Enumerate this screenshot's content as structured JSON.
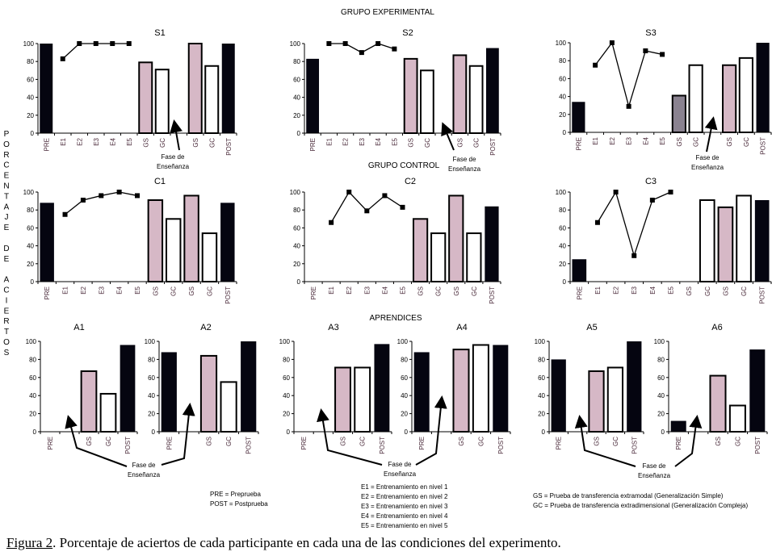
{
  "groups": {
    "experimental": "GRUPO EXPERIMENTAL",
    "control": "GRUPO CONTROL",
    "apprentices": "APRENDICES"
  },
  "y_axis_label": "PORCENTAJE DE ACIERTOS",
  "annotation": [
    "Fase de",
    "Enseñanza"
  ],
  "legend": {
    "pre_post": [
      "PRE = Preprueba",
      "POST = Postprueba"
    ],
    "training": [
      "E1 = Entrenamiento en nivel 1",
      "E2 = Entrenamiento en nivel 2",
      "E3 = Entrenamiento en nivel 3",
      "E4 = Entrenamiento en nivel 4",
      "E5 = Entrenamiento en nivel 5"
    ],
    "transfer": [
      "GS = Prueba de transferencia extramodal (Generalización Simple)",
      "GC = Prueba de transferencia extradimensional (Generalización Compleja)"
    ]
  },
  "caption": {
    "label": "Figura 2",
    "text": ". Porcentaje de aciertos de cada participante en cada una de las condiciones del experimento."
  },
  "colors": {
    "pre_post": "#050510",
    "gs": "#d6b8c6",
    "gs_dark": "#8a8290",
    "gc": "#ffffff",
    "tick_label": "#4a2a3a",
    "line": "#000000"
  },
  "chart_data": [
    {
      "type": "bar+line",
      "title": "S1",
      "ylim": [
        0,
        100
      ],
      "yticks": [
        0,
        20,
        40,
        60,
        80,
        100
      ],
      "categories": [
        "PRE",
        "E1",
        "E2",
        "E3",
        "E4",
        "E5",
        "GS",
        "GC",
        "",
        "GS",
        "GC",
        "POST"
      ],
      "bars": [
        100,
        null,
        null,
        null,
        null,
        null,
        79,
        71,
        null,
        100,
        75,
        100
      ],
      "line": [
        null,
        83,
        100,
        100,
        100,
        100,
        null,
        null,
        null,
        null,
        null,
        null
      ]
    },
    {
      "type": "bar+line",
      "title": "S2",
      "ylim": [
        0,
        100
      ],
      "yticks": [
        0,
        20,
        40,
        60,
        80,
        100
      ],
      "categories": [
        "PRE",
        "E1",
        "E2",
        "E3",
        "E4",
        "E5",
        "GS",
        "GC",
        "",
        "GS",
        "GC",
        "POST"
      ],
      "bars": [
        83,
        null,
        null,
        null,
        null,
        null,
        83,
        70,
        null,
        87,
        75,
        95
      ],
      "line": [
        null,
        100,
        100,
        90,
        100,
        94,
        null,
        null,
        null,
        null,
        null,
        null
      ]
    },
    {
      "type": "bar+line",
      "title": "S3",
      "ylim": [
        0,
        100
      ],
      "yticks": [
        0,
        20,
        40,
        60,
        80,
        100
      ],
      "categories": [
        "PRE",
        "E1",
        "E2",
        "E3",
        "E4",
        "E5",
        "GS",
        "GC",
        "",
        "GS",
        "GC",
        "POST"
      ],
      "bars": [
        34,
        null,
        null,
        null,
        null,
        null,
        41,
        75,
        null,
        75,
        83,
        100
      ],
      "line": [
        null,
        75,
        100,
        29,
        91,
        87,
        null,
        null,
        null,
        null,
        null,
        null
      ],
      "dark_gs_index": 6
    },
    {
      "type": "bar+line",
      "title": "C1",
      "ylim": [
        0,
        100
      ],
      "yticks": [
        0,
        20,
        40,
        60,
        80,
        100
      ],
      "categories": [
        "PRE",
        "E1",
        "E2",
        "E3",
        "E4",
        "E5",
        "GS",
        "GC",
        "GS",
        "GC",
        "POST"
      ],
      "bars": [
        88,
        null,
        null,
        null,
        null,
        null,
        91,
        70,
        96,
        54,
        88
      ],
      "line": [
        null,
        75,
        91,
        96,
        100,
        96,
        null,
        null,
        null,
        null,
        null
      ]
    },
    {
      "type": "bar+line",
      "title": "C2",
      "ylim": [
        0,
        100
      ],
      "yticks": [
        0,
        20,
        40,
        60,
        80,
        100
      ],
      "categories": [
        "PRE",
        "E1",
        "E2",
        "E3",
        "E4",
        "E5",
        "GS",
        "GC",
        "GS",
        "GC",
        "POST"
      ],
      "bars": [
        0,
        null,
        null,
        null,
        null,
        null,
        70,
        54,
        96,
        54,
        84
      ],
      "line": [
        null,
        66,
        100,
        79,
        96,
        83,
        null,
        null,
        null,
        null,
        null
      ]
    },
    {
      "type": "bar+line",
      "title": "C3",
      "ylim": [
        0,
        100
      ],
      "yticks": [
        0,
        20,
        40,
        60,
        80,
        100
      ],
      "categories": [
        "PRE",
        "E1",
        "E2",
        "E3",
        "E4",
        "E5",
        "GS",
        "GC",
        "GS",
        "GC",
        "POST"
      ],
      "bars": [
        25,
        null,
        null,
        null,
        null,
        null,
        0,
        91,
        83,
        96,
        91
      ],
      "line": [
        null,
        66,
        100,
        29,
        91,
        100,
        null,
        null,
        null,
        null,
        null
      ]
    },
    {
      "type": "bar",
      "title": "A1",
      "ylim": [
        0,
        100
      ],
      "yticks": [
        0,
        20,
        40,
        60,
        80,
        100
      ],
      "categories": [
        "PRE",
        "",
        "GS",
        "GC",
        "POST"
      ],
      "bars": [
        0,
        null,
        67,
        42,
        96
      ]
    },
    {
      "type": "bar",
      "title": "A2",
      "ylim": [
        0,
        100
      ],
      "yticks": [
        0,
        20,
        40,
        60,
        80,
        100
      ],
      "categories": [
        "PRE",
        "",
        "GS",
        "GC",
        "POST"
      ],
      "bars": [
        88,
        null,
        84,
        55,
        100
      ]
    },
    {
      "type": "bar",
      "title": "A3",
      "ylim": [
        0,
        100
      ],
      "yticks": [
        0,
        20,
        40,
        60,
        80,
        100
      ],
      "categories": [
        "PRE",
        "",
        "GS",
        "GC",
        "POST"
      ],
      "bars": [
        0,
        null,
        71,
        71,
        97
      ]
    },
    {
      "type": "bar",
      "title": "A4",
      "ylim": [
        0,
        100
      ],
      "yticks": [
        0,
        20,
        40,
        60,
        80,
        100
      ],
      "categories": [
        "PRE",
        "",
        "GS",
        "GC",
        "POST"
      ],
      "bars": [
        88,
        null,
        91,
        96,
        96
      ]
    },
    {
      "type": "bar",
      "title": "A5",
      "ylim": [
        0,
        100
      ],
      "yticks": [
        0,
        20,
        40,
        60,
        80,
        100
      ],
      "categories": [
        "PRE",
        "",
        "GS",
        "GC",
        "POST"
      ],
      "bars": [
        80,
        null,
        67,
        71,
        100
      ]
    },
    {
      "type": "bar",
      "title": "A6",
      "ylim": [
        0,
        100
      ],
      "yticks": [
        0,
        20,
        40,
        60,
        80,
        100
      ],
      "categories": [
        "PRE",
        "",
        "GS",
        "GC",
        "POST"
      ],
      "bars": [
        12,
        null,
        62,
        29,
        91
      ]
    }
  ]
}
